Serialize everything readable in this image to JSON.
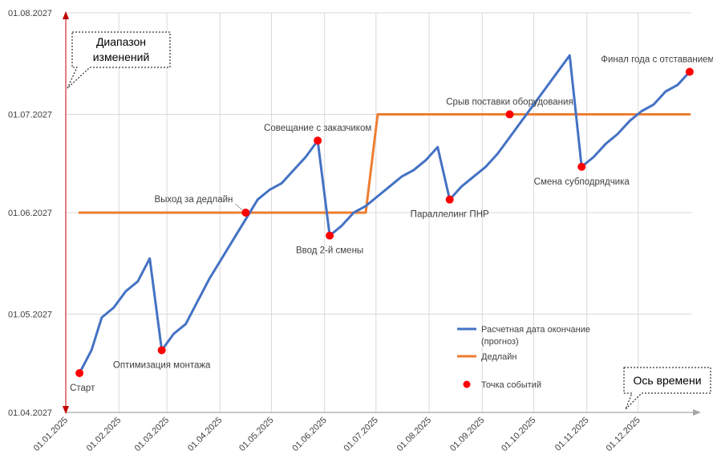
{
  "chart_data": {
    "type": "line",
    "y_axis": {
      "ticks": [
        {
          "label": "01.04.2027",
          "value": 0
        },
        {
          "label": "01.05.2027",
          "value": 30
        },
        {
          "label": "01.06.2027",
          "value": 61
        },
        {
          "label": "01.07.2027",
          "value": 91
        },
        {
          "label": "01.08.2027",
          "value": 122
        }
      ],
      "range": [
        0,
        122
      ]
    },
    "x_axis": {
      "ticks": [
        {
          "label": "01.01.2025",
          "value": 0
        },
        {
          "label": "01.02.2025",
          "value": 31
        },
        {
          "label": "01.03.2025",
          "value": 59
        },
        {
          "label": "01.04.2025",
          "value": 90
        },
        {
          "label": "01.05.2025",
          "value": 120
        },
        {
          "label": "01.06.2025",
          "value": 151
        },
        {
          "label": "01.07.2025",
          "value": 181
        },
        {
          "label": "01.08.2025",
          "value": 212
        },
        {
          "label": "01.09.2025",
          "value": 243
        },
        {
          "label": "01.10.2025",
          "value": 273
        },
        {
          "label": "01.11.2025",
          "value": 304
        },
        {
          "label": "01.12.2025",
          "value": 334
        }
      ],
      "range": [
        0,
        365
      ]
    },
    "series": [
      {
        "name": "Расчетная дата окончание (прогноз)",
        "color": "#4472C4",
        "points": [
          [
            8,
            12
          ],
          [
            15,
            19
          ],
          [
            21,
            29
          ],
          [
            28,
            32
          ],
          [
            35,
            37
          ],
          [
            42,
            40
          ],
          [
            49,
            47
          ],
          [
            56,
            19
          ],
          [
            63,
            24
          ],
          [
            70,
            27
          ],
          [
            77,
            34
          ],
          [
            84,
            41
          ],
          [
            91,
            47
          ],
          [
            98,
            53
          ],
          [
            105,
            59
          ],
          [
            112,
            65
          ],
          [
            119,
            68
          ],
          [
            126,
            70
          ],
          [
            133,
            74
          ],
          [
            140,
            78
          ],
          [
            147,
            83
          ],
          [
            154,
            54
          ],
          [
            161,
            57
          ],
          [
            168,
            61
          ],
          [
            175,
            63
          ],
          [
            182,
            66
          ],
          [
            189,
            69
          ],
          [
            196,
            72
          ],
          [
            203,
            74
          ],
          [
            210,
            77
          ],
          [
            217,
            81
          ],
          [
            224,
            65
          ],
          [
            231,
            69
          ],
          [
            238,
            72
          ],
          [
            245,
            75
          ],
          [
            252,
            79
          ],
          [
            259,
            84
          ],
          [
            266,
            89
          ],
          [
            273,
            94
          ],
          [
            280,
            99
          ],
          [
            287,
            104
          ],
          [
            294,
            109
          ],
          [
            301,
            75
          ],
          [
            308,
            78
          ],
          [
            315,
            82
          ],
          [
            322,
            85
          ],
          [
            329,
            89
          ],
          [
            336,
            92
          ],
          [
            343,
            94
          ],
          [
            350,
            98
          ],
          [
            357,
            100
          ],
          [
            364,
            104
          ]
        ]
      },
      {
        "name": "Дедлайн",
        "color": "#ED7D31",
        "points": [
          [
            8,
            61
          ],
          [
            175,
            61
          ],
          [
            182,
            91
          ],
          [
            364,
            91
          ]
        ]
      }
    ],
    "events": [
      {
        "label": "Старт",
        "x": 8,
        "y": 12,
        "anchor": "below-left"
      },
      {
        "label": "Оптимизация монтажа",
        "x": 56,
        "y": 19,
        "anchor": "below"
      },
      {
        "label": "Выход за дедлайн",
        "x": 105,
        "y": 61,
        "anchor": "above-left"
      },
      {
        "label": "Совещание с заказчиком",
        "x": 147,
        "y": 83,
        "anchor": "above"
      },
      {
        "label": "Ввод 2-й смены",
        "x": 154,
        "y": 54,
        "anchor": "below"
      },
      {
        "label": "Параллелинг ПНР",
        "x": 224,
        "y": 65,
        "anchor": "below"
      },
      {
        "label": "Срыв поставки оборудования",
        "x": 259,
        "y": 91,
        "anchor": "above"
      },
      {
        "label": "Смена субподрядчика",
        "x": 301,
        "y": 75,
        "anchor": "below"
      },
      {
        "label": "Финал года с отставанием",
        "x": 364,
        "y": 104,
        "anchor": "above"
      }
    ],
    "legend": {
      "position": "bottom-right",
      "items": [
        {
          "label": "Расчетная дата окончание",
          "label2": "(прогноз)",
          "kind": "line",
          "color": "#4472C4"
        },
        {
          "label": "Дедлайн",
          "kind": "line",
          "color": "#ED7D31"
        },
        {
          "label": "Точка событий",
          "kind": "marker",
          "color": "#FF0000"
        }
      ]
    },
    "callouts": {
      "y_axis": {
        "line1": "Диапазон",
        "line2": "изменений"
      },
      "x_axis": {
        "line1": "Ось времени"
      }
    },
    "colors": {
      "grid": "#D9D9D9",
      "axis_arrow": "#C00000",
      "time_arrow": "#A6A6A6",
      "event": "#FF0000"
    }
  }
}
